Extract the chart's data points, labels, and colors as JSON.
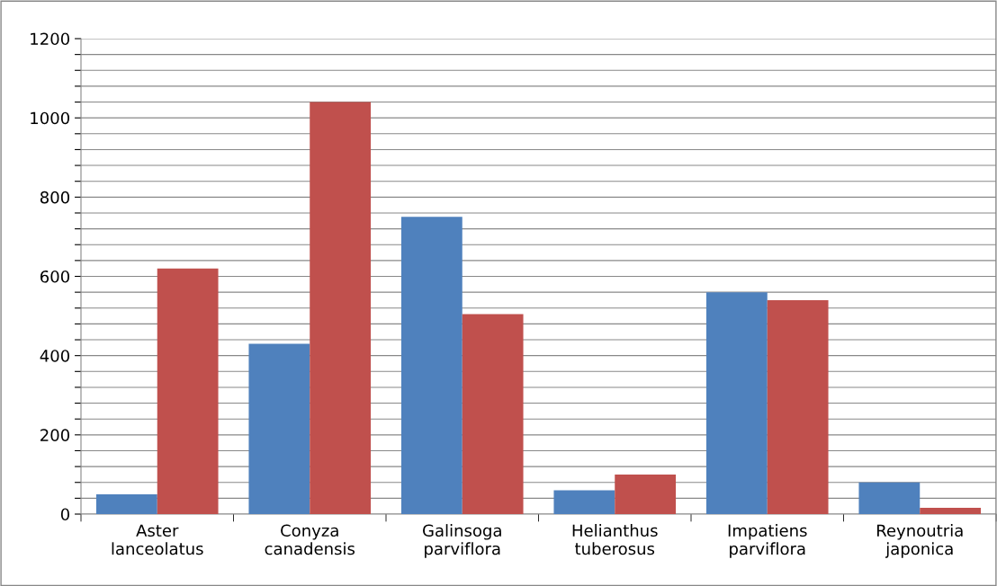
{
  "chart_data": {
    "type": "bar",
    "categories": [
      "Aster\nlanceolatus",
      "Conyza\ncanadensis",
      "Galinsoga\nparviflora",
      "Helianthus\ntuberosus",
      "Impatiens\nparviflora",
      "Reynoutria\njaponica"
    ],
    "series": [
      {
        "color": "#4f81bd",
        "values": [
          50,
          430,
          750,
          60,
          560,
          80
        ]
      },
      {
        "color": "#c0504d",
        "values": [
          620,
          1040,
          505,
          100,
          540,
          16
        ]
      }
    ],
    "ylim": [
      0,
      1200
    ],
    "yticks": [
      0,
      {
        "value": 40,
        "label": null
      },
      {
        "value": 80,
        "label": null
      },
      {
        "value": 120,
        "label": null
      },
      {
        "value": 160,
        "label": null
      },
      200,
      {
        "value": 240,
        "label": null
      },
      {
        "value": 280,
        "label": null
      },
      {
        "value": 320,
        "label": null
      },
      {
        "value": 360,
        "label": null
      },
      400,
      {
        "value": 440,
        "label": null
      },
      {
        "value": 480,
        "label": null
      },
      {
        "value": 520,
        "label": null
      },
      {
        "value": 560,
        "label": null
      },
      600,
      {
        "value": 640,
        "label": null
      },
      {
        "value": 680,
        "label": null
      },
      {
        "value": 720,
        "label": null
      },
      {
        "value": 760,
        "label": null
      },
      800,
      {
        "value": 840,
        "label": null
      },
      {
        "value": 880,
        "label": null
      },
      {
        "value": 920,
        "label": null
      },
      {
        "value": 960,
        "label": null
      },
      1000,
      {
        "value": 1040,
        "label": null
      },
      {
        "value": 1080,
        "label": null
      },
      {
        "value": 1120,
        "label": null
      },
      {
        "value": 1160,
        "label": null
      },
      1200
    ],
    "grid": "y"
  }
}
